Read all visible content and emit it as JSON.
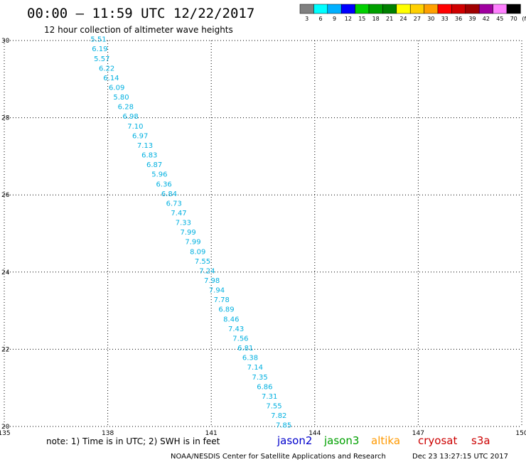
{
  "header": {
    "title": "00:00 – 11:59 UTC 12/22/2017",
    "subtitle": "12 hour collection of altimeter wave heights"
  },
  "legend": {
    "unit": "(ft)",
    "bins": [
      {
        "label": "3",
        "color": "#808080"
      },
      {
        "label": "6",
        "color": "#00ffff"
      },
      {
        "label": "9",
        "color": "#00b0ff"
      },
      {
        "label": "12",
        "color": "#0000ff"
      },
      {
        "label": "15",
        "color": "#00d000"
      },
      {
        "label": "18",
        "color": "#00a000"
      },
      {
        "label": "21",
        "color": "#008000"
      },
      {
        "label": "24",
        "color": "#ffff00"
      },
      {
        "label": "27",
        "color": "#ffd000"
      },
      {
        "label": "30",
        "color": "#ffa000"
      },
      {
        "label": "33",
        "color": "#ff0000"
      },
      {
        "label": "36",
        "color": "#d00000"
      },
      {
        "label": "39",
        "color": "#a00000"
      },
      {
        "label": "42",
        "color": "#a000a0"
      },
      {
        "label": "45",
        "color": "#ff80ff"
      },
      {
        "label": "70",
        "color": "#000000"
      }
    ]
  },
  "footer": {
    "note": "note: 1) Time is in UTC; 2) SWH is in feet",
    "satellites": [
      {
        "name": "jason2",
        "color": "#0000cc"
      },
      {
        "name": "jason3",
        "color": "#00a000"
      },
      {
        "name": "altika",
        "color": "#ff9900"
      },
      {
        "name": "cryosat",
        "color": "#cc0000"
      },
      {
        "name": "s3a",
        "color": "#cc0000"
      }
    ],
    "credit": "NOAA/NESDIS Center for Satellite Applications and Research",
    "timestamp": "Dec 23 13:27:15 UTC 2017"
  },
  "chart_data": {
    "type": "scatter",
    "title": "00:00 – 11:59 UTC 12/22/2017",
    "subtitle": "12 hour collection of altimeter wave heights",
    "xlabel": "",
    "ylabel": "",
    "xlim": [
      135,
      150
    ],
    "ylim": [
      20,
      30
    ],
    "x_ticks": [
      "135",
      "138",
      "141",
      "144",
      "147",
      "150"
    ],
    "y_ticks": [
      "20",
      "22",
      "24",
      "26",
      "28",
      "30"
    ],
    "grid": true,
    "series": [
      {
        "name": "jason2",
        "color": "#00b0e0",
        "points": [
          {
            "x": 137.5,
            "y": 29.97,
            "v": "5.51"
          },
          {
            "x": 137.54,
            "y": 29.72,
            "v": "6.19"
          },
          {
            "x": 137.6,
            "y": 29.47,
            "v": "5.57"
          },
          {
            "x": 137.74,
            "y": 29.22,
            "v": "6.22"
          },
          {
            "x": 137.87,
            "y": 28.97,
            "v": "6.14"
          },
          {
            "x": 138.03,
            "y": 28.72,
            "v": "6.09"
          },
          {
            "x": 138.16,
            "y": 28.47,
            "v": "5.80"
          },
          {
            "x": 138.29,
            "y": 28.22,
            "v": "6.28"
          },
          {
            "x": 138.43,
            "y": 27.97,
            "v": "6.98"
          },
          {
            "x": 138.57,
            "y": 27.72,
            "v": "7.10"
          },
          {
            "x": 138.71,
            "y": 27.47,
            "v": "6.97"
          },
          {
            "x": 138.85,
            "y": 27.22,
            "v": "7.13"
          },
          {
            "x": 138.98,
            "y": 26.97,
            "v": "6.83"
          },
          {
            "x": 139.12,
            "y": 26.72,
            "v": "6.87"
          },
          {
            "x": 139.27,
            "y": 26.47,
            "v": "5.96"
          },
          {
            "x": 139.4,
            "y": 26.22,
            "v": "6.36"
          },
          {
            "x": 139.55,
            "y": 25.97,
            "v": "6.84"
          },
          {
            "x": 139.69,
            "y": 25.72,
            "v": "6.73"
          },
          {
            "x": 139.83,
            "y": 25.47,
            "v": "7.47"
          },
          {
            "x": 139.96,
            "y": 25.22,
            "v": "7.33"
          },
          {
            "x": 140.1,
            "y": 24.97,
            "v": "7.99"
          },
          {
            "x": 140.24,
            "y": 24.72,
            "v": "7.99"
          },
          {
            "x": 140.38,
            "y": 24.47,
            "v": "8.09"
          },
          {
            "x": 140.52,
            "y": 24.22,
            "v": "7.55"
          },
          {
            "x": 140.65,
            "y": 23.97,
            "v": "7.24"
          },
          {
            "x": 140.79,
            "y": 23.72,
            "v": "7.98"
          },
          {
            "x": 140.93,
            "y": 23.47,
            "v": "7.94"
          },
          {
            "x": 141.07,
            "y": 23.22,
            "v": "7.78"
          },
          {
            "x": 141.21,
            "y": 22.97,
            "v": "6.89"
          },
          {
            "x": 141.35,
            "y": 22.72,
            "v": "8.46"
          },
          {
            "x": 141.49,
            "y": 22.47,
            "v": "7.43"
          },
          {
            "x": 141.62,
            "y": 22.22,
            "v": "7.56"
          },
          {
            "x": 141.76,
            "y": 21.97,
            "v": "6.81"
          },
          {
            "x": 141.9,
            "y": 21.72,
            "v": "6.38"
          },
          {
            "x": 142.04,
            "y": 21.47,
            "v": "7.14"
          },
          {
            "x": 142.18,
            "y": 21.22,
            "v": "7.35"
          },
          {
            "x": 142.32,
            "y": 20.97,
            "v": "6.86"
          },
          {
            "x": 142.46,
            "y": 20.72,
            "v": "7.31"
          },
          {
            "x": 142.59,
            "y": 20.47,
            "v": "7.55"
          },
          {
            "x": 142.73,
            "y": 20.22,
            "v": "7.82"
          },
          {
            "x": 142.87,
            "y": 19.97,
            "v": "7.85"
          }
        ]
      }
    ]
  }
}
